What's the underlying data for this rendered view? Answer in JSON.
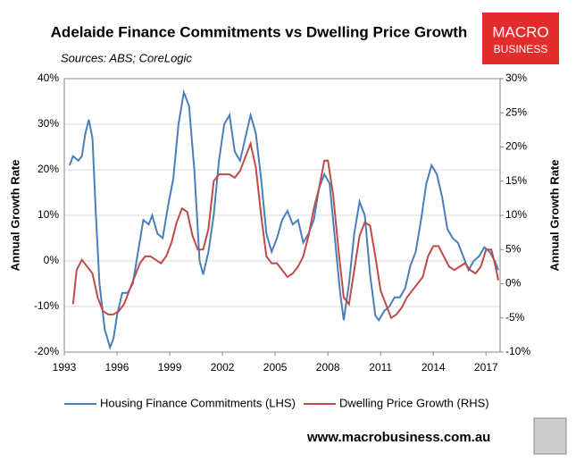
{
  "chart_data": {
    "type": "line",
    "title": "Adelaide Finance Commitments vs Dwelling Price Growth",
    "subtitle": "Sources: ABS; CoreLogic",
    "ylabel": "Annual Growth Rate",
    "y2label": "Annual Growth Rate",
    "xlim": [
      1993,
      2017.8
    ],
    "xticks": [
      1993,
      1996,
      1999,
      2002,
      2005,
      2008,
      2011,
      2014,
      2017
    ],
    "ylim": [
      -20,
      40
    ],
    "yticks": [
      {
        "value": -20,
        "label": "-20%"
      },
      {
        "value": -10,
        "label": "-10%"
      },
      {
        "value": 0,
        "label": "0%"
      },
      {
        "value": 10,
        "label": "10%"
      },
      {
        "value": 20,
        "label": "20%"
      },
      {
        "value": 30,
        "label": "30%"
      },
      {
        "value": 40,
        "label": "40%"
      }
    ],
    "y2lim": [
      -10,
      30
    ],
    "y2ticks": [
      {
        "value": -10,
        "label": "-10%"
      },
      {
        "value": -5,
        "label": "-5%"
      },
      {
        "value": 0,
        "label": "0%"
      },
      {
        "value": 5,
        "label": "5%"
      },
      {
        "value": 10,
        "label": "10%"
      },
      {
        "value": 15,
        "label": "15%"
      },
      {
        "value": 20,
        "label": "20%"
      },
      {
        "value": 25,
        "label": "25%"
      },
      {
        "value": 30,
        "label": "30%"
      }
    ],
    "grid": true,
    "legend": "bottom",
    "series": [
      {
        "name": "Housing Finance Commitments (LHS)",
        "color": "#4a7ebb",
        "axis": "y",
        "x": [
          1993.3,
          1993.5,
          1993.8,
          1994.0,
          1994.2,
          1994.4,
          1994.6,
          1994.8,
          1995.0,
          1995.3,
          1995.6,
          1995.8,
          1996.0,
          1996.3,
          1996.6,
          1996.9,
          1997.2,
          1997.5,
          1997.8,
          1998.0,
          1998.3,
          1998.6,
          1998.9,
          1999.2,
          1999.5,
          1999.8,
          2000.1,
          2000.4,
          2000.7,
          2000.9,
          2001.2,
          2001.5,
          2001.8,
          2002.1,
          2002.4,
          2002.7,
          2003.0,
          2003.3,
          2003.6,
          2003.9,
          2004.2,
          2004.5,
          2004.8,
          2005.1,
          2005.4,
          2005.7,
          2006.0,
          2006.3,
          2006.6,
          2006.9,
          2007.2,
          2007.5,
          2007.8,
          2008.1,
          2008.4,
          2008.7,
          2008.9,
          2009.2,
          2009.5,
          2009.8,
          2010.1,
          2010.4,
          2010.7,
          2010.9,
          2011.2,
          2011.5,
          2011.8,
          2012.1,
          2012.4,
          2012.7,
          2013.0,
          2013.3,
          2013.6,
          2013.9,
          2014.2,
          2014.5,
          2014.8,
          2015.1,
          2015.4,
          2015.7,
          2016.0,
          2016.3,
          2016.6,
          2016.9,
          2017.2,
          2017.5,
          2017.7
        ],
        "values": [
          21,
          23,
          22,
          23,
          28,
          31,
          27,
          10,
          -5,
          -15,
          -19,
          -17,
          -12,
          -7,
          -7,
          -5,
          2,
          9,
          8,
          10,
          6,
          5,
          12,
          18,
          30,
          37,
          34,
          20,
          0,
          -3,
          2,
          10,
          22,
          30,
          32,
          24,
          22,
          27,
          32,
          28,
          18,
          6,
          2,
          5,
          9,
          11,
          8,
          9,
          4,
          6,
          9,
          16,
          19,
          17,
          5,
          -7,
          -13,
          -5,
          6,
          13,
          10,
          -3,
          -12,
          -13,
          -11,
          -10,
          -8,
          -8,
          -6,
          -1,
          2,
          9,
          17,
          21,
          19,
          14,
          7,
          5,
          4,
          1,
          -2,
          0,
          1,
          3,
          2,
          0,
          -2
        ]
      },
      {
        "name": "Dwelling Price Growth (RHS)",
        "color": "#be4b48",
        "axis": "y2",
        "x": [
          1993.5,
          1993.7,
          1994.0,
          1994.3,
          1994.6,
          1994.9,
          1995.2,
          1995.5,
          1995.8,
          1996.1,
          1996.4,
          1996.7,
          1997.0,
          1997.3,
          1997.6,
          1997.9,
          1998.2,
          1998.5,
          1998.8,
          1999.1,
          1999.4,
          1999.7,
          2000.0,
          2000.3,
          2000.6,
          2000.9,
          2001.2,
          2001.5,
          2001.8,
          2002.1,
          2002.4,
          2002.7,
          2003.0,
          2003.3,
          2003.6,
          2003.9,
          2004.2,
          2004.5,
          2004.8,
          2005.1,
          2005.4,
          2005.7,
          2006.0,
          2006.3,
          2006.6,
          2006.9,
          2007.2,
          2007.5,
          2007.8,
          2008.0,
          2008.3,
          2008.6,
          2008.9,
          2009.2,
          2009.5,
          2009.8,
          2010.1,
          2010.4,
          2010.7,
          2011.0,
          2011.3,
          2011.6,
          2011.9,
          2012.2,
          2012.5,
          2012.8,
          2013.1,
          2013.4,
          2013.7,
          2014.0,
          2014.3,
          2014.6,
          2014.9,
          2015.2,
          2015.5,
          2015.8,
          2016.1,
          2016.4,
          2016.7,
          2017.0,
          2017.3,
          2017.5,
          2017.7
        ],
        "values": [
          -3,
          2,
          3.5,
          2.5,
          1.5,
          -2,
          -4,
          -4.5,
          -4.5,
          -4,
          -3,
          -1,
          1,
          3,
          4,
          4,
          3.5,
          3,
          4,
          6,
          9,
          11,
          10.5,
          7,
          5,
          5,
          8,
          15,
          16,
          16,
          16,
          15.5,
          16.5,
          18.5,
          20.5,
          17,
          10,
          4,
          3,
          3,
          2,
          1,
          1.5,
          2.5,
          4,
          7,
          11,
          14,
          18,
          18,
          13,
          5,
          -2,
          -3,
          2,
          7,
          9,
          8.5,
          4,
          -1,
          -3,
          -5,
          -4.5,
          -3.5,
          -2,
          -1,
          0,
          1,
          4,
          5.5,
          5.5,
          4,
          2.5,
          2,
          2.5,
          3,
          2,
          1.5,
          2.5,
          5,
          5,
          3,
          0.5
        ]
      }
    ]
  },
  "logo": {
    "line1": "MACRO",
    "line2": "BUSINESS"
  },
  "footer": "www.macrobusiness.com.au"
}
